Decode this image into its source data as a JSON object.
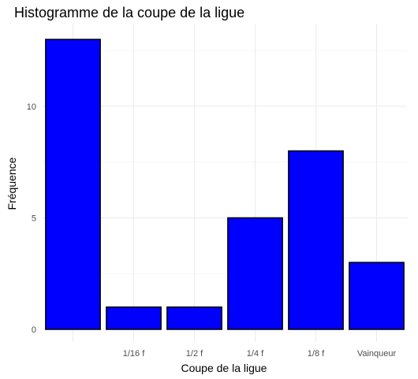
{
  "chart_data": {
    "type": "bar",
    "title": "Histogramme de la coupe de la ligue",
    "xlabel": "Coupe de la ligue",
    "ylabel": "Fréquence",
    "categories": [
      "",
      "1/16 f",
      "1/2 f",
      "1/4 f",
      "1/8 f",
      "Vainqueur"
    ],
    "values": [
      13,
      1,
      1,
      5,
      8,
      3
    ],
    "yticks": [
      0,
      5,
      10
    ],
    "ylim": [
      0,
      13.65
    ],
    "grid": true,
    "bar_color": "#0000ff",
    "bar_outline": "#000000",
    "legend": "none"
  }
}
